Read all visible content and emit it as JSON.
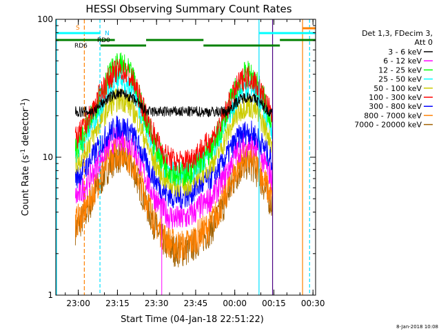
{
  "chart_data": {
    "type": "line",
    "title": "HESSI Observing Summary Count Rates",
    "xlabel": "Start Time (04-Jan-18 22:51:22)",
    "ylabel_main": "Count Rate (s",
    "ylabel_sup1": "-1",
    "ylabel_mid": " detector",
    "ylabel_sup2": "-1",
    "ylabel_end": ")",
    "y_scale": "log",
    "ylim": [
      1,
      100
    ],
    "y_ticks": [
      {
        "v": 1,
        "label": "1"
      },
      {
        "v": 10,
        "label": "10"
      },
      {
        "v": 100,
        "label": "100"
      }
    ],
    "x_range_minutes": [
      "22:51:22",
      "00:31:00"
    ],
    "x_ticks": [
      "23:00",
      "23:15",
      "23:30",
      "23:45",
      "00:00",
      "00:15",
      "00:30"
    ],
    "legend_header": [
      "Det 1,3, FDecim 3,",
      "Att 0"
    ],
    "series": [
      {
        "name": "3 - 6 keV",
        "color": "#000000"
      },
      {
        "name": "6 - 12 keV",
        "color": "#ff00ff"
      },
      {
        "name": "12 - 25 keV",
        "color": "#00ff00"
      },
      {
        "name": "25 - 50 keV",
        "color": "#00ffff"
      },
      {
        "name": "50 - 100 keV",
        "color": "#cccc00"
      },
      {
        "name": "100 - 300 keV",
        "color": "#ff0000"
      },
      {
        "name": "300 - 800 keV",
        "color": "#0000ff"
      },
      {
        "name": "800 - 7000 keV",
        "color": "#ff8000"
      },
      {
        "name": "7000 - 20000 keV",
        "color": "#a06000"
      }
    ],
    "flags": {
      "s_label": "S",
      "n_label": "N",
      "rd0_label": "RD0",
      "rd6_label": "RD6"
    },
    "legend_placement": "right"
  },
  "footer_date": "8-Jan-2018 10:08"
}
